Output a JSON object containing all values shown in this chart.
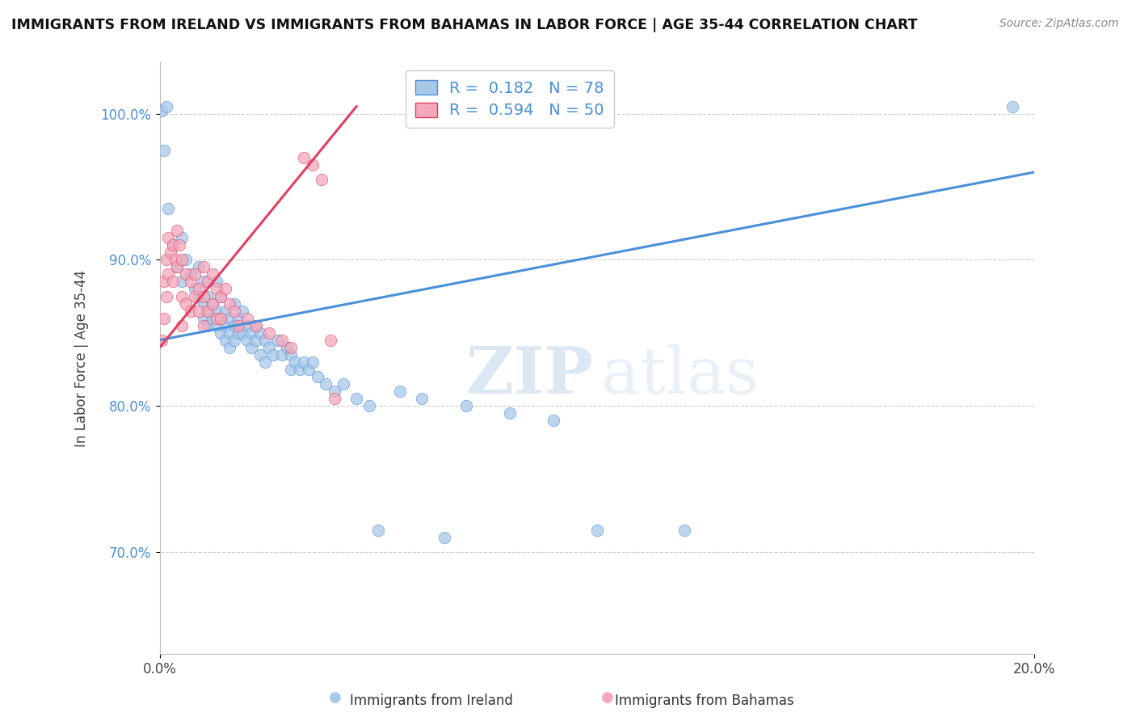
{
  "title": "IMMIGRANTS FROM IRELAND VS IMMIGRANTS FROM BAHAMAS IN LABOR FORCE | AGE 35-44 CORRELATION CHART",
  "source": "Source: ZipAtlas.com",
  "ylabel": "In Labor Force | Age 35-44",
  "xlim": [
    0.0,
    20.0
  ],
  "ylim": [
    63.0,
    103.5
  ],
  "ireland_color": "#a8c8e8",
  "bahamas_color": "#f4a8bc",
  "ireland_line_color": "#4a90d9",
  "bahamas_line_color": "#e04060",
  "ireland_R": 0.182,
  "ireland_N": 78,
  "bahamas_R": 0.594,
  "bahamas_N": 50,
  "legend_label_ireland": "Immigrants from Ireland",
  "legend_label_bahamas": "Immigrants from Bahamas",
  "watermark_zip": "ZIP",
  "watermark_atlas": "atlas",
  "background_color": "#ffffff",
  "grid_color": "#cccccc",
  "ireland_scatter": [
    [
      0.05,
      100.2
    ],
    [
      0.1,
      97.5
    ],
    [
      0.15,
      100.5
    ],
    [
      0.2,
      93.5
    ],
    [
      0.3,
      91.0
    ],
    [
      0.4,
      89.5
    ],
    [
      0.5,
      88.5
    ],
    [
      0.5,
      91.5
    ],
    [
      0.6,
      90.0
    ],
    [
      0.7,
      89.0
    ],
    [
      0.8,
      88.0
    ],
    [
      0.9,
      87.5
    ],
    [
      0.9,
      89.5
    ],
    [
      1.0,
      88.5
    ],
    [
      1.0,
      87.0
    ],
    [
      1.0,
      86.0
    ],
    [
      1.1,
      87.5
    ],
    [
      1.1,
      86.5
    ],
    [
      1.1,
      85.5
    ],
    [
      1.2,
      87.0
    ],
    [
      1.2,
      86.0
    ],
    [
      1.3,
      88.5
    ],
    [
      1.3,
      86.5
    ],
    [
      1.3,
      85.5
    ],
    [
      1.4,
      87.5
    ],
    [
      1.4,
      86.0
    ],
    [
      1.4,
      85.0
    ],
    [
      1.5,
      86.5
    ],
    [
      1.5,
      85.5
    ],
    [
      1.5,
      84.5
    ],
    [
      1.6,
      86.0
    ],
    [
      1.6,
      85.0
    ],
    [
      1.6,
      84.0
    ],
    [
      1.7,
      87.0
    ],
    [
      1.7,
      85.5
    ],
    [
      1.7,
      84.5
    ],
    [
      1.8,
      86.0
    ],
    [
      1.8,
      85.0
    ],
    [
      1.9,
      86.5
    ],
    [
      1.9,
      85.0
    ],
    [
      2.0,
      85.5
    ],
    [
      2.0,
      84.5
    ],
    [
      2.1,
      85.0
    ],
    [
      2.1,
      84.0
    ],
    [
      2.2,
      85.5
    ],
    [
      2.2,
      84.5
    ],
    [
      2.3,
      85.0
    ],
    [
      2.3,
      83.5
    ],
    [
      2.4,
      84.5
    ],
    [
      2.4,
      83.0
    ],
    [
      2.5,
      84.0
    ],
    [
      2.6,
      83.5
    ],
    [
      2.7,
      84.5
    ],
    [
      2.8,
      83.5
    ],
    [
      2.9,
      84.0
    ],
    [
      3.0,
      83.5
    ],
    [
      3.0,
      82.5
    ],
    [
      3.1,
      83.0
    ],
    [
      3.2,
      82.5
    ],
    [
      3.3,
      83.0
    ],
    [
      3.4,
      82.5
    ],
    [
      3.5,
      83.0
    ],
    [
      3.6,
      82.0
    ],
    [
      3.8,
      81.5
    ],
    [
      4.0,
      81.0
    ],
    [
      4.2,
      81.5
    ],
    [
      4.5,
      80.5
    ],
    [
      4.8,
      80.0
    ],
    [
      5.0,
      71.5
    ],
    [
      5.5,
      81.0
    ],
    [
      6.0,
      80.5
    ],
    [
      6.5,
      71.0
    ],
    [
      7.0,
      80.0
    ],
    [
      8.0,
      79.5
    ],
    [
      9.0,
      79.0
    ],
    [
      10.0,
      71.5
    ],
    [
      12.0,
      71.5
    ],
    [
      19.5,
      100.5
    ]
  ],
  "bahamas_scatter": [
    [
      0.05,
      84.5
    ],
    [
      0.1,
      86.0
    ],
    [
      0.1,
      88.5
    ],
    [
      0.15,
      87.5
    ],
    [
      0.15,
      90.0
    ],
    [
      0.2,
      89.0
    ],
    [
      0.2,
      91.5
    ],
    [
      0.25,
      90.5
    ],
    [
      0.3,
      88.5
    ],
    [
      0.3,
      91.0
    ],
    [
      0.35,
      90.0
    ],
    [
      0.4,
      89.5
    ],
    [
      0.4,
      92.0
    ],
    [
      0.45,
      91.0
    ],
    [
      0.5,
      90.0
    ],
    [
      0.5,
      87.5
    ],
    [
      0.5,
      85.5
    ],
    [
      0.6,
      89.0
    ],
    [
      0.6,
      87.0
    ],
    [
      0.7,
      88.5
    ],
    [
      0.7,
      86.5
    ],
    [
      0.8,
      89.0
    ],
    [
      0.8,
      87.5
    ],
    [
      0.9,
      88.0
    ],
    [
      0.9,
      86.5
    ],
    [
      1.0,
      89.5
    ],
    [
      1.0,
      87.5
    ],
    [
      1.0,
      85.5
    ],
    [
      1.1,
      88.5
    ],
    [
      1.1,
      86.5
    ],
    [
      1.2,
      89.0
    ],
    [
      1.2,
      87.0
    ],
    [
      1.3,
      88.0
    ],
    [
      1.3,
      86.0
    ],
    [
      1.4,
      87.5
    ],
    [
      1.4,
      86.0
    ],
    [
      1.5,
      88.0
    ],
    [
      1.6,
      87.0
    ],
    [
      1.7,
      86.5
    ],
    [
      1.8,
      85.5
    ],
    [
      2.0,
      86.0
    ],
    [
      2.2,
      85.5
    ],
    [
      2.5,
      85.0
    ],
    [
      2.8,
      84.5
    ],
    [
      3.0,
      84.0
    ],
    [
      3.3,
      97.0
    ],
    [
      3.5,
      96.5
    ],
    [
      3.7,
      95.5
    ],
    [
      3.9,
      84.5
    ],
    [
      4.0,
      80.5
    ]
  ],
  "ireland_trendline": [
    0,
    20,
    84.5,
    96.0
  ],
  "bahamas_trendline": [
    0,
    4.5,
    84.0,
    100.5
  ]
}
